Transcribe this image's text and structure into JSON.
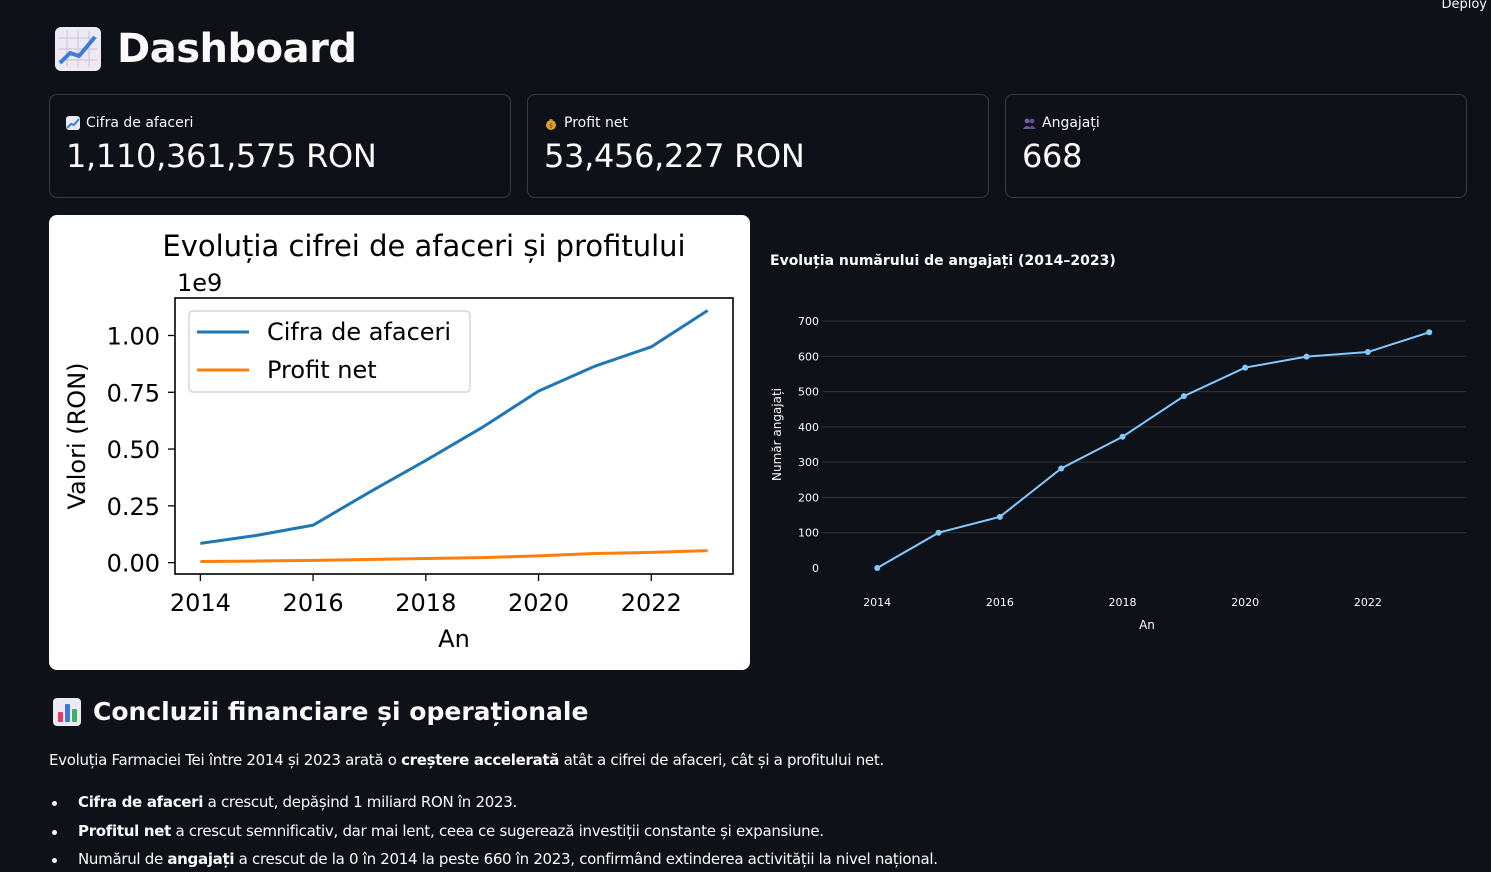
{
  "header": {
    "deploy_label": "Deploy",
    "title": "Dashboard",
    "title_icon": "chart-increasing-icon"
  },
  "metrics": [
    {
      "icon": "chart-increasing-icon",
      "label": "Cifra de afaceri",
      "value": "1,110,361,575 RON"
    },
    {
      "icon": "money-bag-icon",
      "label": "Profit net",
      "value": "53,456,227 RON"
    },
    {
      "icon": "people-icon",
      "label": "Angajați",
      "value": "668"
    }
  ],
  "chart_data": [
    {
      "type": "line",
      "title": "Evoluția cifrei de afaceri și profitului",
      "xlabel": "An",
      "ylabel": "Valori (RON)",
      "offset_label": "1e9",
      "x": [
        2014,
        2015,
        2016,
        2017,
        2018,
        2019,
        2020,
        2021,
        2022,
        2023
      ],
      "x_ticks": [
        "2014",
        "2016",
        "2018",
        "2020",
        "2022"
      ],
      "y_ticks": [
        "0.00",
        "0.25",
        "0.50",
        "0.75",
        "1.00"
      ],
      "xlim": [
        2013.55,
        2023.45
      ],
      "ylim": [
        -0.05,
        1.165
      ],
      "legend_position": "upper-left",
      "series": [
        {
          "name": "Cifra de afaceri",
          "color": "#1f77b4",
          "values": [
            0.085,
            0.12,
            0.165,
            0.31,
            0.45,
            0.595,
            0.755,
            0.865,
            0.95,
            1.11
          ]
        },
        {
          "name": "Profit net",
          "color": "#ff7f0e",
          "values": [
            0.005,
            0.007,
            0.01,
            0.014,
            0.018,
            0.022,
            0.03,
            0.04,
            0.045,
            0.053
          ]
        }
      ]
    },
    {
      "type": "line",
      "title": "Evoluția numărului de angajați (2014–2023)",
      "xlabel": "An",
      "ylabel": "Număr angajați",
      "x": [
        2014,
        2015,
        2016,
        2017,
        2018,
        2019,
        2020,
        2021,
        2022,
        2023
      ],
      "x_ticks": [
        "2014",
        "2016",
        "2018",
        "2020",
        "2022"
      ],
      "y_ticks": [
        "0",
        "100",
        "200",
        "300",
        "400",
        "500",
        "600",
        "700"
      ],
      "xlim": [
        2013.1,
        2023.6
      ],
      "ylim": [
        0,
        700
      ],
      "grid": true,
      "series": [
        {
          "name": "",
          "color": "#83c9ff",
          "values": [
            0,
            100,
            145,
            282,
            372,
            487,
            568,
            599,
            612,
            668
          ]
        }
      ]
    }
  ],
  "conclusions": {
    "title": "Concluzii financiare și operaționale",
    "title_icon": "bar-chart-icon",
    "intro_before": "Evoluția Farmaciei Tei între 2014 și 2023 arată o ",
    "intro_bold": "creștere accelerată",
    "intro_after": " atât a cifrei de afaceri, cât și a profitului net.",
    "bullets": [
      {
        "pre": "",
        "bold": "Cifra de afaceri",
        "post": " a crescut, depășind 1 miliard RON în 2023."
      },
      {
        "pre": "",
        "bold": "Profitul net",
        "post": " a crescut semnificativ, dar mai lent, ceea ce sugerează investiții constante și expansiune."
      },
      {
        "pre": "Numărul de ",
        "bold": "angajați",
        "post": " a crescut de la 0 în 2014 la peste 660 în 2023, confirmând extinderea activității la nivel național."
      }
    ]
  }
}
